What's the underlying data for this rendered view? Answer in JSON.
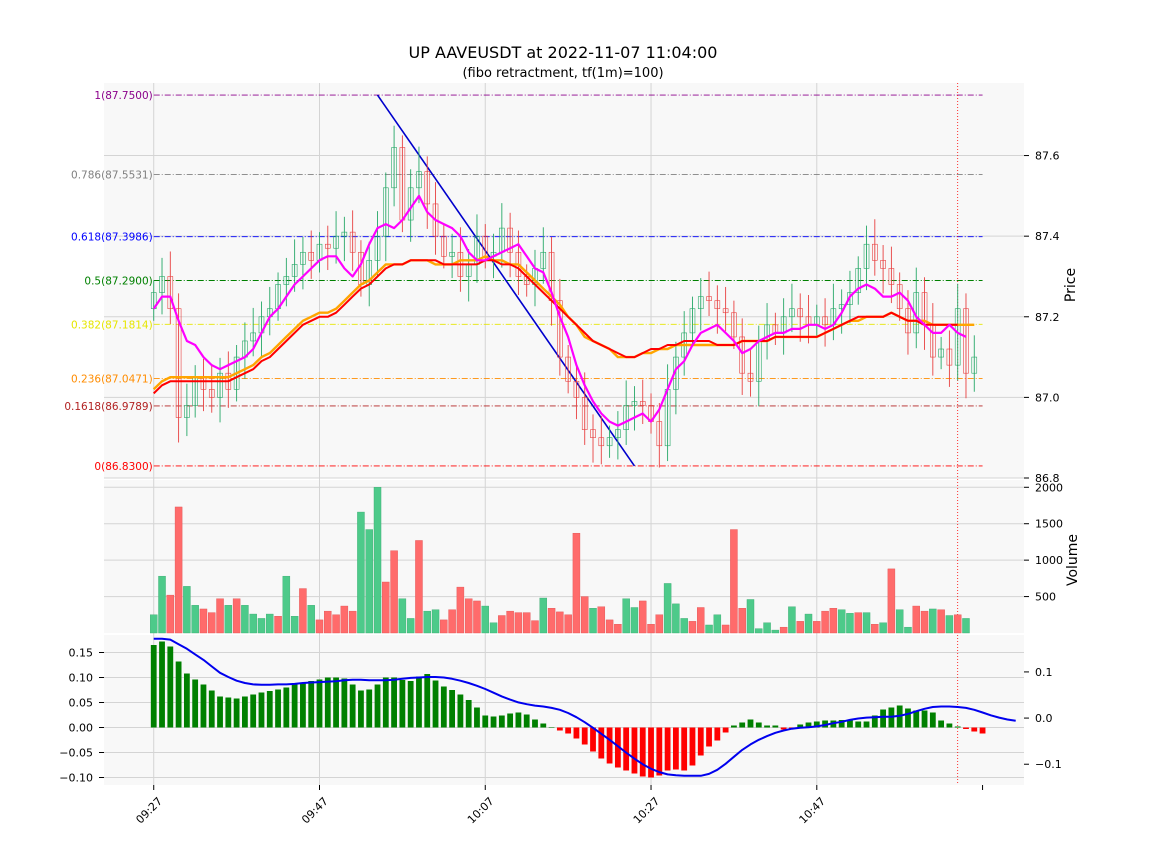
{
  "chart_data": {
    "type": "candlestick",
    "title": "UP AAVEUSDT at 2022-11-07 11:04:00",
    "subtitle": "(fibo retractment, tf(1m)=100)",
    "x_tick_labels": [
      "09:27",
      "09:47",
      "10:07",
      "10:27",
      "10:47"
    ],
    "x_tick_minutes": [
      0,
      20,
      40,
      60,
      80
    ],
    "x_domain_minutes": [
      -6,
      105
    ],
    "colors": {
      "up": "#26a867",
      "down": "#e84141",
      "up_bar": "#4dca8a",
      "down_bar": "#ff6b6b",
      "ema_fast": "#ff00ff",
      "ema_mid": "#ff0000",
      "ema_slow": "#ffa500",
      "signal": "#0000ee",
      "fibo_line": "#0000cc",
      "hist_up": "#008000",
      "hist_down": "#ff0000",
      "cursor": "#ff0000"
    },
    "price_panel": {
      "ylabel": "Price",
      "ylim": [
        86.8,
        87.78
      ],
      "yticks": [
        86.8,
        87.0,
        87.2,
        87.4,
        87.6
      ],
      "ytick_labels": [
        "86.8",
        "87.0",
        "87.2",
        "87.4",
        "87.6"
      ],
      "fibo_levels": [
        {
          "label": "1(87.7500)",
          "value": 87.75,
          "color": "#8b008b"
        },
        {
          "label": "0.786(87.5531)",
          "value": 87.5531,
          "color": "#808080"
        },
        {
          "label": "0.618(87.3986)",
          "value": 87.3986,
          "color": "#0000ff"
        },
        {
          "label": "0.5(87.2900)",
          "value": 87.29,
          "color": "#008000"
        },
        {
          "label": "0.382(87.1814)",
          "value": 87.1814,
          "color": "#e6e600"
        },
        {
          "label": "0.236(87.0471)",
          "value": 87.0471,
          "color": "#ff8c00"
        },
        {
          "label": "0.1618(86.9789)",
          "value": 86.9789,
          "color": "#b22222"
        },
        {
          "label": "0(86.8300)",
          "value": 86.83,
          "color": "#ff0000"
        }
      ],
      "fibo_swing": {
        "from": [
          27,
          87.75
        ],
        "to": [
          58,
          86.83
        ]
      },
      "cursor_minute": 97,
      "close": [
        87.26,
        87.3,
        87.22,
        86.95,
        86.98,
        87.05,
        87.02,
        87.0,
        87.06,
        87.02,
        87.1,
        87.14,
        87.16,
        87.2,
        87.22,
        87.28,
        87.3,
        87.33,
        87.36,
        87.34,
        87.38,
        87.37,
        87.4,
        87.41,
        87.36,
        87.28,
        87.34,
        87.4,
        87.52,
        87.62,
        87.44,
        87.52,
        87.56,
        87.48,
        87.4,
        87.35,
        87.36,
        87.3,
        87.33,
        87.4,
        87.35,
        87.36,
        87.42,
        87.36,
        87.3,
        87.28,
        87.32,
        87.36,
        87.24,
        87.1,
        87.04,
        87.0,
        86.92,
        86.9,
        86.88,
        86.9,
        86.92,
        86.98,
        86.99,
        86.98,
        86.94,
        86.88,
        87.02,
        87.1,
        87.16,
        87.22,
        87.25,
        87.24,
        87.22,
        87.21,
        87.15,
        87.06,
        87.04,
        87.14,
        87.18,
        87.16,
        87.2,
        87.22,
        87.2,
        87.18,
        87.2,
        87.18,
        87.22,
        87.23,
        87.26,
        87.32,
        87.38,
        87.34,
        87.32,
        87.28,
        87.22,
        87.16,
        87.26,
        87.18,
        87.1,
        87.12,
        87.08,
        87.22,
        87.06,
        87.1
      ],
      "ema_fast": [
        87.22,
        87.25,
        87.25,
        87.19,
        87.14,
        87.13,
        87.1,
        87.08,
        87.07,
        87.08,
        87.09,
        87.1,
        87.12,
        87.16,
        87.2,
        87.22,
        87.25,
        87.28,
        87.3,
        87.32,
        87.34,
        87.35,
        87.35,
        87.32,
        87.3,
        87.33,
        87.38,
        87.42,
        87.43,
        87.42,
        87.44,
        87.47,
        87.5,
        87.46,
        87.44,
        87.43,
        87.42,
        87.4,
        87.36,
        87.34,
        87.34,
        87.35,
        87.36,
        87.37,
        87.38,
        87.35,
        87.32,
        87.31,
        87.26,
        87.2,
        87.15,
        87.08,
        87.03,
        86.99,
        86.96,
        86.94,
        86.93,
        86.94,
        86.95,
        86.96,
        86.94,
        86.97,
        87.02,
        87.07,
        87.09,
        87.13,
        87.16,
        87.17,
        87.18,
        87.16,
        87.14,
        87.11,
        87.12,
        87.14,
        87.15,
        87.16,
        87.16,
        87.17,
        87.17,
        87.18,
        87.18,
        87.17,
        87.18,
        87.21,
        87.25,
        87.27,
        87.28,
        87.27,
        87.25,
        87.25,
        87.26,
        87.24,
        87.2,
        87.18,
        87.16,
        87.16,
        87.18,
        87.16,
        87.15
      ],
      "ema_mid": [
        87.01,
        87.03,
        87.04,
        87.04,
        87.04,
        87.04,
        87.04,
        87.04,
        87.04,
        87.04,
        87.05,
        87.06,
        87.07,
        87.09,
        87.1,
        87.12,
        87.14,
        87.16,
        87.18,
        87.19,
        87.2,
        87.2,
        87.21,
        87.23,
        87.25,
        87.27,
        87.28,
        87.3,
        87.32,
        87.33,
        87.33,
        87.34,
        87.34,
        87.34,
        87.34,
        87.33,
        87.33,
        87.33,
        87.33,
        87.33,
        87.34,
        87.34,
        87.33,
        87.33,
        87.32,
        87.3,
        87.28,
        87.26,
        87.24,
        87.22,
        87.2,
        87.18,
        87.16,
        87.14,
        87.13,
        87.12,
        87.11,
        87.1,
        87.1,
        87.11,
        87.12,
        87.12,
        87.13,
        87.13,
        87.14,
        87.14,
        87.14,
        87.14,
        87.13,
        87.13,
        87.13,
        87.14,
        87.14,
        87.14,
        87.14,
        87.15,
        87.15,
        87.15,
        87.15,
        87.15,
        87.15,
        87.16,
        87.17,
        87.18,
        87.19,
        87.2,
        87.2,
        87.2,
        87.2,
        87.21,
        87.2,
        87.19,
        87.19,
        87.18,
        87.18,
        87.18,
        87.18,
        87.18
      ],
      "ema_slow": [
        87.02,
        87.04,
        87.05,
        87.05,
        87.05,
        87.05,
        87.05,
        87.05,
        87.05,
        87.05,
        87.06,
        87.07,
        87.08,
        87.1,
        87.11,
        87.13,
        87.15,
        87.17,
        87.19,
        87.2,
        87.21,
        87.21,
        87.22,
        87.24,
        87.26,
        87.28,
        87.29,
        87.31,
        87.33,
        87.33,
        87.33,
        87.34,
        87.34,
        87.34,
        87.33,
        87.33,
        87.33,
        87.34,
        87.34,
        87.34,
        87.35,
        87.34,
        87.34,
        87.33,
        87.33,
        87.31,
        87.29,
        87.27,
        87.25,
        87.23,
        87.2,
        87.18,
        87.15,
        87.14,
        87.13,
        87.12,
        87.1,
        87.1,
        87.1,
        87.11,
        87.11,
        87.12,
        87.12,
        87.13,
        87.13,
        87.13,
        87.13,
        87.13,
        87.13,
        87.13,
        87.13,
        87.14,
        87.14,
        87.14,
        87.14,
        87.15,
        87.15,
        87.15,
        87.15,
        87.15,
        87.15,
        87.16,
        87.17,
        87.18,
        87.19,
        87.19,
        87.2,
        87.2,
        87.2,
        87.21,
        87.2,
        87.19,
        87.19,
        87.19,
        87.18,
        87.18,
        87.18,
        87.18,
        87.18,
        87.18
      ]
    },
    "volume_panel": {
      "ylabel": "Volume",
      "ylim": [
        0,
        2100
      ],
      "yticks": [
        500,
        1000,
        1500,
        2000
      ],
      "ytick_labels": [
        "500",
        "1000",
        "1500",
        "2000"
      ],
      "values": [
        250,
        780,
        520,
        1730,
        640,
        380,
        330,
        280,
        470,
        380,
        470,
        380,
        260,
        200,
        260,
        230,
        780,
        230,
        610,
        380,
        180,
        300,
        250,
        370,
        300,
        1660,
        1420,
        2000,
        700,
        1130,
        470,
        200,
        1270,
        300,
        320,
        180,
        320,
        630,
        470,
        440,
        370,
        140,
        240,
        300,
        280,
        280,
        170,
        480,
        340,
        290,
        250,
        1370,
        500,
        340,
        360,
        180,
        120,
        470,
        350,
        440,
        120,
        250,
        680,
        400,
        200,
        160,
        350,
        110,
        250,
        110,
        1420,
        340,
        460,
        60,
        140,
        40,
        80,
        360,
        160,
        260,
        160,
        300,
        340,
        320,
        270,
        280,
        280,
        120,
        140,
        880,
        320,
        80,
        370,
        300,
        330,
        320,
        240,
        250,
        200
      ],
      "up": [
        1,
        1,
        0,
        0,
        1,
        1,
        0,
        0,
        0,
        1,
        0,
        1,
        1,
        1,
        1,
        0,
        1,
        1,
        0,
        1,
        0,
        0,
        0,
        0,
        0,
        1,
        1,
        1,
        0,
        0,
        1,
        1,
        0,
        1,
        1,
        0,
        0,
        0,
        0,
        0,
        1,
        1,
        0,
        0,
        0,
        0,
        0,
        1,
        0,
        0,
        0,
        0,
        0,
        1,
        0,
        0,
        0,
        1,
        1,
        0,
        0,
        0,
        1,
        1,
        1,
        0,
        0,
        1,
        1,
        0,
        0,
        0,
        1,
        1,
        1,
        1,
        0,
        1,
        0,
        1,
        0,
        0,
        0,
        1,
        1,
        0,
        1,
        0,
        1,
        0,
        1,
        1,
        0,
        0,
        1,
        0,
        1,
        0,
        1,
        0
      ]
    },
    "macd_panel": {
      "left_yticks": [
        -0.1,
        -0.05,
        0.0,
        0.05,
        0.1,
        0.15
      ],
      "left_ytick_labels": [
        "−0.10",
        "−0.05",
        "0.00",
        "0.05",
        "0.10",
        "0.15"
      ],
      "left_ylim": [
        -0.115,
        0.185
      ],
      "right_yticks": [
        -0.1,
        0.0,
        0.1
      ],
      "right_ytick_labels": [
        "−0.1",
        "0.0",
        "0.1"
      ],
      "right_ylim": [
        -0.145,
        0.18
      ],
      "histogram": [
        0.165,
        0.172,
        0.162,
        0.132,
        0.108,
        0.096,
        0.086,
        0.074,
        0.062,
        0.06,
        0.058,
        0.062,
        0.066,
        0.07,
        0.073,
        0.076,
        0.08,
        0.086,
        0.09,
        0.093,
        0.096,
        0.1,
        0.1,
        0.098,
        0.086,
        0.074,
        0.076,
        0.086,
        0.1,
        0.1,
        0.095,
        0.093,
        0.102,
        0.107,
        0.094,
        0.082,
        0.075,
        0.066,
        0.055,
        0.04,
        0.024,
        0.022,
        0.024,
        0.028,
        0.03,
        0.026,
        0.016,
        0.008,
        0.0,
        -0.006,
        -0.012,
        -0.022,
        -0.034,
        -0.048,
        -0.062,
        -0.072,
        -0.08,
        -0.086,
        -0.092,
        -0.098,
        -0.1,
        -0.096,
        -0.086,
        -0.084,
        -0.086,
        -0.076,
        -0.056,
        -0.038,
        -0.026,
        -0.01,
        0.004,
        0.01,
        0.016,
        0.01,
        0.004,
        0.004,
        -0.004,
        -0.002,
        0.006,
        0.01,
        0.012,
        0.014,
        0.014,
        0.015,
        0.016,
        0.012,
        0.012,
        0.024,
        0.036,
        0.04,
        0.044,
        0.038,
        0.034,
        0.034,
        0.03,
        0.014,
        0.008,
        0.002,
        -0.003,
        -0.008,
        -0.012
      ],
      "signal": [
        0.172,
        0.172,
        0.17,
        0.16,
        0.15,
        0.138,
        0.126,
        0.112,
        0.098,
        0.089,
        0.081,
        0.076,
        0.073,
        0.072,
        0.072,
        0.073,
        0.073,
        0.074,
        0.076,
        0.077,
        0.078,
        0.079,
        0.08,
        0.082,
        0.083,
        0.083,
        0.082,
        0.082,
        0.082,
        0.083,
        0.085,
        0.087,
        0.088,
        0.089,
        0.089,
        0.088,
        0.085,
        0.081,
        0.076,
        0.07,
        0.063,
        0.055,
        0.047,
        0.04,
        0.034,
        0.03,
        0.027,
        0.025,
        0.022,
        0.018,
        0.011,
        0.002,
        -0.009,
        -0.021,
        -0.034,
        -0.047,
        -0.061,
        -0.075,
        -0.088,
        -0.1,
        -0.11,
        -0.117,
        -0.122,
        -0.124,
        -0.125,
        -0.125,
        -0.125,
        -0.121,
        -0.112,
        -0.099,
        -0.084,
        -0.069,
        -0.057,
        -0.047,
        -0.039,
        -0.032,
        -0.027,
        -0.023,
        -0.021,
        -0.02,
        -0.018,
        -0.015,
        -0.011,
        -0.008,
        -0.004,
        -0.001,
        0.001,
        0.002,
        0.003,
        0.003,
        0.005,
        0.009,
        0.015,
        0.02,
        0.024,
        0.025,
        0.025,
        0.024,
        0.022,
        0.018,
        0.012,
        0.006,
        0.001,
        -0.003,
        -0.006
      ]
    }
  }
}
